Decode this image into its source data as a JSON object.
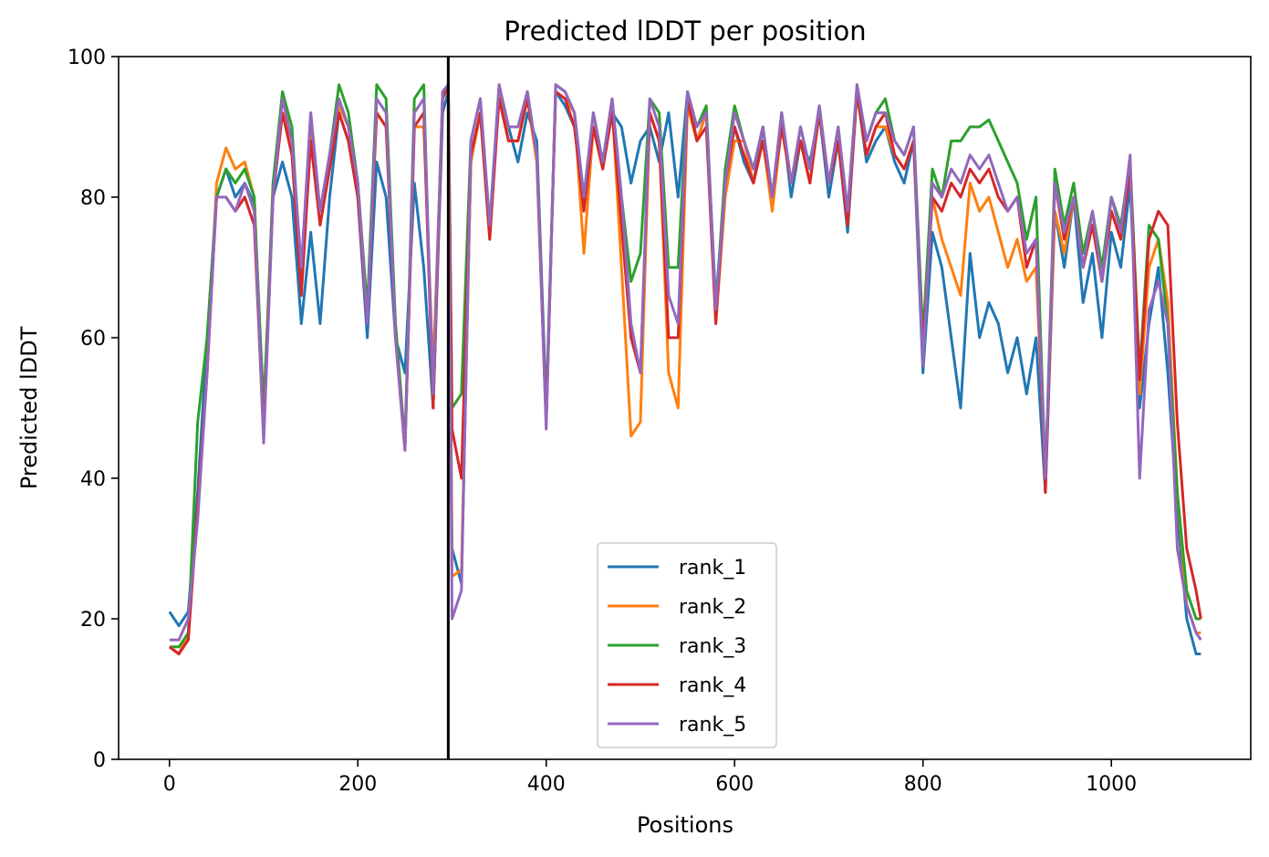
{
  "chart_data": {
    "type": "line",
    "title": "Predicted lDDT per position",
    "xlabel": "Positions",
    "ylabel": "Predicted lDDT",
    "xlim": [
      -54,
      1148
    ],
    "ylim": [
      0,
      100
    ],
    "xticks": [
      0,
      200,
      400,
      600,
      800,
      1000
    ],
    "yticks": [
      0,
      20,
      40,
      60,
      80,
      100
    ],
    "grid": false,
    "legend_position": "lower-center",
    "vline_x": 296,
    "vline_color": "#000000",
    "colors": {
      "rank_1": "#1f77b4",
      "rank_2": "#ff7f0e",
      "rank_3": "#2ca02c",
      "rank_4": "#d62728",
      "rank_5": "#9467bd"
    },
    "series": [
      {
        "name": "rank_1",
        "x": [
          0,
          10,
          20,
          30,
          40,
          50,
          60,
          70,
          80,
          90,
          100,
          110,
          120,
          130,
          140,
          150,
          160,
          170,
          180,
          190,
          200,
          210,
          220,
          230,
          240,
          250,
          260,
          270,
          280,
          290,
          296,
          300,
          310,
          320,
          330,
          340,
          350,
          360,
          370,
          380,
          390,
          400,
          410,
          420,
          430,
          440,
          450,
          460,
          470,
          480,
          490,
          500,
          510,
          520,
          530,
          540,
          550,
          560,
          570,
          580,
          590,
          600,
          610,
          620,
          630,
          640,
          650,
          660,
          670,
          680,
          690,
          700,
          710,
          720,
          730,
          740,
          750,
          760,
          770,
          780,
          790,
          800,
          810,
          820,
          830,
          840,
          850,
          860,
          870,
          880,
          890,
          900,
          910,
          920,
          930,
          940,
          950,
          960,
          970,
          980,
          990,
          1000,
          1010,
          1020,
          1030,
          1040,
          1050,
          1060,
          1070,
          1080,
          1090,
          1095
        ],
        "y": [
          21,
          19,
          21,
          38,
          60,
          80,
          84,
          80,
          82,
          79,
          50,
          80,
          85,
          80,
          62,
          75,
          62,
          80,
          92,
          88,
          80,
          60,
          85,
          80,
          60,
          55,
          82,
          70,
          50,
          92,
          95,
          30,
          25,
          85,
          92,
          75,
          95,
          90,
          85,
          92,
          88,
          50,
          95,
          93,
          90,
          80,
          90,
          85,
          92,
          90,
          82,
          88,
          90,
          85,
          92,
          80,
          95,
          88,
          92,
          65,
          82,
          90,
          85,
          82,
          90,
          80,
          92,
          80,
          88,
          85,
          92,
          80,
          88,
          75,
          95,
          85,
          88,
          90,
          85,
          82,
          88,
          55,
          75,
          70,
          60,
          50,
          72,
          60,
          65,
          62,
          55,
          60,
          52,
          60,
          38,
          78,
          70,
          80,
          65,
          72,
          60,
          75,
          70,
          82,
          50,
          62,
          70,
          55,
          35,
          20,
          15,
          15
        ]
      },
      {
        "name": "rank_2",
        "x": [
          0,
          10,
          20,
          30,
          40,
          50,
          60,
          70,
          80,
          90,
          100,
          110,
          120,
          130,
          140,
          150,
          160,
          170,
          180,
          190,
          200,
          210,
          220,
          230,
          240,
          250,
          260,
          270,
          280,
          290,
          296,
          300,
          310,
          320,
          330,
          340,
          350,
          360,
          370,
          380,
          390,
          400,
          410,
          420,
          430,
          440,
          450,
          460,
          470,
          480,
          490,
          500,
          510,
          520,
          530,
          540,
          550,
          560,
          570,
          580,
          590,
          600,
          610,
          620,
          630,
          640,
          650,
          660,
          670,
          680,
          690,
          700,
          710,
          720,
          730,
          740,
          750,
          760,
          770,
          780,
          790,
          800,
          810,
          820,
          830,
          840,
          850,
          860,
          870,
          880,
          890,
          900,
          910,
          920,
          930,
          940,
          950,
          960,
          970,
          980,
          990,
          1000,
          1010,
          1020,
          1030,
          1040,
          1050,
          1060,
          1070,
          1080,
          1090,
          1095
        ],
        "y": [
          16,
          15,
          18,
          35,
          55,
          82,
          87,
          84,
          85,
          80,
          48,
          82,
          92,
          88,
          70,
          90,
          78,
          86,
          93,
          90,
          82,
          64,
          92,
          90,
          62,
          44,
          90,
          90,
          55,
          94,
          96,
          26,
          27,
          85,
          92,
          74,
          95,
          88,
          88,
          94,
          85,
          48,
          95,
          94,
          92,
          72,
          90,
          84,
          93,
          70,
          46,
          48,
          92,
          88,
          55,
          50,
          93,
          88,
          92,
          62,
          80,
          88,
          88,
          82,
          88,
          78,
          90,
          82,
          88,
          82,
          92,
          82,
          88,
          76,
          95,
          86,
          90,
          90,
          86,
          84,
          88,
          58,
          80,
          74,
          70,
          66,
          82,
          78,
          80,
          75,
          70,
          74,
          68,
          70,
          40,
          78,
          72,
          80,
          70,
          76,
          68,
          78,
          74,
          84,
          52,
          70,
          74,
          65,
          38,
          22,
          18,
          18
        ]
      },
      {
        "name": "rank_3",
        "x": [
          0,
          10,
          20,
          30,
          40,
          50,
          60,
          70,
          80,
          90,
          100,
          110,
          120,
          130,
          140,
          150,
          160,
          170,
          180,
          190,
          200,
          210,
          220,
          230,
          240,
          250,
          260,
          270,
          280,
          290,
          296,
          300,
          310,
          320,
          330,
          340,
          350,
          360,
          370,
          380,
          390,
          400,
          410,
          420,
          430,
          440,
          450,
          460,
          470,
          480,
          490,
          500,
          510,
          520,
          530,
          540,
          550,
          560,
          570,
          580,
          590,
          600,
          610,
          620,
          630,
          640,
          650,
          660,
          670,
          680,
          690,
          700,
          710,
          720,
          730,
          740,
          750,
          760,
          770,
          780,
          790,
          800,
          810,
          820,
          830,
          840,
          850,
          860,
          870,
          880,
          890,
          900,
          910,
          920,
          930,
          940,
          950,
          960,
          970,
          980,
          990,
          1000,
          1010,
          1020,
          1030,
          1040,
          1050,
          1060,
          1070,
          1080,
          1090,
          1095
        ],
        "y": [
          16,
          16,
          18,
          48,
          60,
          80,
          84,
          82,
          84,
          80,
          48,
          82,
          95,
          90,
          68,
          92,
          78,
          86,
          96,
          92,
          82,
          64,
          96,
          94,
          62,
          45,
          94,
          96,
          50,
          95,
          96,
          50,
          52,
          88,
          94,
          76,
          96,
          90,
          90,
          95,
          86,
          48,
          96,
          95,
          92,
          80,
          92,
          85,
          94,
          80,
          68,
          72,
          94,
          92,
          70,
          70,
          95,
          90,
          93,
          64,
          84,
          93,
          88,
          84,
          90,
          80,
          92,
          82,
          90,
          84,
          93,
          82,
          90,
          78,
          96,
          88,
          92,
          94,
          88,
          86,
          90,
          60,
          84,
          80,
          88,
          88,
          90,
          90,
          91,
          88,
          85,
          82,
          74,
          80,
          40,
          84,
          76,
          82,
          72,
          78,
          70,
          80,
          76,
          85,
          55,
          76,
          74,
          62,
          38,
          24,
          20,
          20
        ]
      },
      {
        "name": "rank_4",
        "x": [
          0,
          10,
          20,
          30,
          40,
          50,
          60,
          70,
          80,
          90,
          100,
          110,
          120,
          130,
          140,
          150,
          160,
          170,
          180,
          190,
          200,
          210,
          220,
          230,
          240,
          250,
          260,
          270,
          280,
          290,
          296,
          300,
          310,
          320,
          330,
          340,
          350,
          360,
          370,
          380,
          390,
          400,
          410,
          420,
          430,
          440,
          450,
          460,
          470,
          480,
          490,
          500,
          510,
          520,
          530,
          540,
          550,
          560,
          570,
          580,
          590,
          600,
          610,
          620,
          630,
          640,
          650,
          660,
          670,
          680,
          690,
          700,
          710,
          720,
          730,
          740,
          750,
          760,
          770,
          780,
          790,
          800,
          810,
          820,
          830,
          840,
          850,
          860,
          870,
          880,
          890,
          900,
          910,
          920,
          930,
          940,
          950,
          960,
          970,
          980,
          990,
          1000,
          1010,
          1020,
          1030,
          1040,
          1050,
          1060,
          1070,
          1080,
          1090,
          1095
        ],
        "y": [
          16,
          15,
          17,
          36,
          55,
          80,
          80,
          78,
          80,
          76,
          46,
          80,
          92,
          86,
          66,
          88,
          76,
          84,
          92,
          88,
          80,
          62,
          92,
          90,
          60,
          44,
          90,
          92,
          50,
          94,
          96,
          47,
          40,
          86,
          92,
          74,
          94,
          88,
          88,
          94,
          86,
          48,
          95,
          94,
          90,
          78,
          90,
          84,
          92,
          76,
          60,
          55,
          92,
          88,
          60,
          60,
          94,
          88,
          90,
          62,
          82,
          90,
          86,
          82,
          88,
          80,
          90,
          82,
          88,
          82,
          92,
          82,
          88,
          76,
          95,
          86,
          90,
          92,
          86,
          84,
          88,
          58,
          80,
          78,
          82,
          80,
          84,
          82,
          84,
          80,
          78,
          80,
          70,
          74,
          38,
          82,
          74,
          80,
          70,
          76,
          68,
          78,
          74,
          84,
          54,
          74,
          78,
          76,
          48,
          30,
          24,
          20
        ]
      },
      {
        "name": "rank_5",
        "x": [
          0,
          10,
          20,
          30,
          40,
          50,
          60,
          70,
          80,
          90,
          100,
          110,
          120,
          130,
          140,
          150,
          160,
          170,
          180,
          190,
          200,
          210,
          220,
          230,
          240,
          250,
          260,
          270,
          280,
          290,
          296,
          300,
          310,
          320,
          330,
          340,
          350,
          360,
          370,
          380,
          390,
          400,
          410,
          420,
          430,
          440,
          450,
          460,
          470,
          480,
          490,
          500,
          510,
          520,
          530,
          540,
          550,
          560,
          570,
          580,
          590,
          600,
          610,
          620,
          630,
          640,
          650,
          660,
          670,
          680,
          690,
          700,
          710,
          720,
          730,
          740,
          750,
          760,
          770,
          780,
          790,
          800,
          810,
          820,
          830,
          840,
          850,
          860,
          870,
          880,
          890,
          900,
          910,
          920,
          930,
          940,
          950,
          960,
          970,
          980,
          990,
          1000,
          1010,
          1020,
          1030,
          1040,
          1050,
          1060,
          1070,
          1080,
          1090,
          1095
        ],
        "y": [
          17,
          17,
          20,
          34,
          55,
          80,
          80,
          78,
          82,
          78,
          45,
          80,
          94,
          88,
          70,
          92,
          78,
          86,
          94,
          90,
          82,
          62,
          94,
          92,
          60,
          44,
          92,
          94,
          52,
          95,
          96,
          20,
          24,
          88,
          94,
          76,
          96,
          90,
          90,
          95,
          86,
          47,
          96,
          95,
          92,
          80,
          92,
          85,
          94,
          80,
          62,
          55,
          94,
          90,
          66,
          62,
          95,
          90,
          92,
          64,
          82,
          92,
          88,
          84,
          90,
          80,
          92,
          82,
          90,
          84,
          93,
          82,
          90,
          78,
          96,
          88,
          92,
          92,
          88,
          86,
          90,
          56,
          82,
          80,
          84,
          82,
          86,
          84,
          86,
          82,
          78,
          80,
          72,
          74,
          40,
          82,
          75,
          80,
          70,
          78,
          68,
          80,
          75,
          86,
          40,
          64,
          68,
          62,
          30,
          22,
          18,
          17
        ]
      }
    ]
  }
}
